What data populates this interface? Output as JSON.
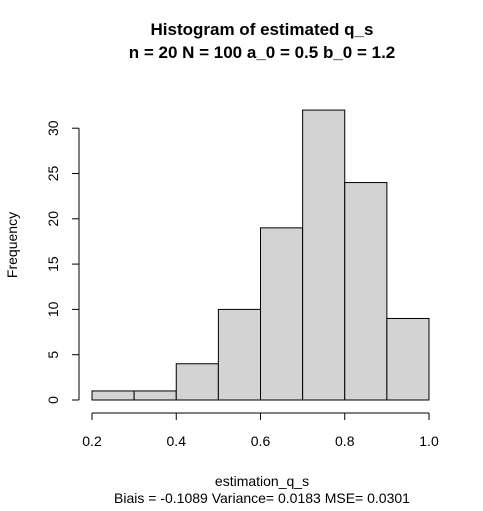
{
  "chart_data": {
    "type": "bar",
    "title": "Histogram of estimated q_s",
    "subtitle": "n = 20  N = 100  a_0 = 0.5  b_0 = 1.2",
    "xlabel": "estimation_q_s",
    "ylabel": "Frequency",
    "footnote": "Biais = -0.1089  Variance= 0.0183  MSE= 0.0301",
    "bins": [
      [
        0.2,
        0.3
      ],
      [
        0.3,
        0.4
      ],
      [
        0.4,
        0.5
      ],
      [
        0.5,
        0.6
      ],
      [
        0.6,
        0.7
      ],
      [
        0.7,
        0.8
      ],
      [
        0.8,
        0.9
      ],
      [
        0.9,
        1.0
      ]
    ],
    "values": [
      1,
      1,
      4,
      10,
      19,
      32,
      24,
      9
    ],
    "xlim": [
      0.2,
      1.0
    ],
    "ylim": [
      0,
      32
    ],
    "x_ticks": [
      0.2,
      0.4,
      0.6,
      0.8,
      1.0
    ],
    "x_tick_labels": [
      "0.2",
      "0.4",
      "0.6",
      "0.8",
      "1.0"
    ],
    "y_ticks": [
      0,
      5,
      10,
      15,
      20,
      25,
      30
    ],
    "y_tick_labels": [
      "0",
      "5",
      "10",
      "15",
      "20",
      "25",
      "30"
    ],
    "bar_color": "#d3d3d3",
    "grid": false
  }
}
